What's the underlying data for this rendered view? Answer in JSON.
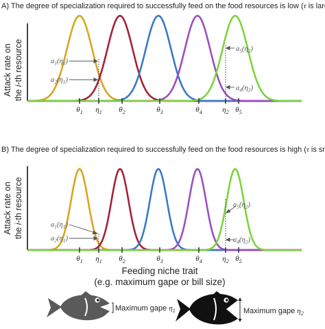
{
  "panel_a": {
    "title": "A) The degree of specialization required to successfully feed on the food resources is low (τ is large)",
    "ticks": [
      "θ1",
      "η1",
      "θ2",
      "θ3",
      "θ4",
      "η2",
      "θ5"
    ],
    "annotations": [
      "a1(η1)",
      "a2(η1)",
      "a5(η2)",
      "a4(η2)"
    ]
  },
  "panel_b": {
    "title": "B) The degree of specialization required to successfully feed on the food resources is high (τ is small)",
    "ticks": [
      "θ1",
      "η1",
      "θ2",
      "θ3",
      "θ4",
      "η2",
      "θ5"
    ],
    "annotations": [
      "a1(η1)",
      "a2(η1)",
      "a5(η2)",
      "a4(η2)"
    ]
  },
  "y_axis_label_line1": "Attack rate on",
  "y_axis_label_line2": "the i-th resource",
  "x_axis_label_line1": "Feeding niche trait",
  "x_axis_label_line2": "(e.g. maximum gape or bill size)",
  "fish_left_label": "Maximum gape η1",
  "fish_right_label": "Maximum gape η2",
  "colors": {
    "curve1": "#d9a520",
    "curve2": "#a5203a",
    "curve3": "#3a78c8",
    "curve4": "#9a4fbf",
    "curve5": "#7cd43c",
    "axis": "#2e2e48",
    "fish_left": "#5a5a5a",
    "fish_right": "#111111"
  }
}
